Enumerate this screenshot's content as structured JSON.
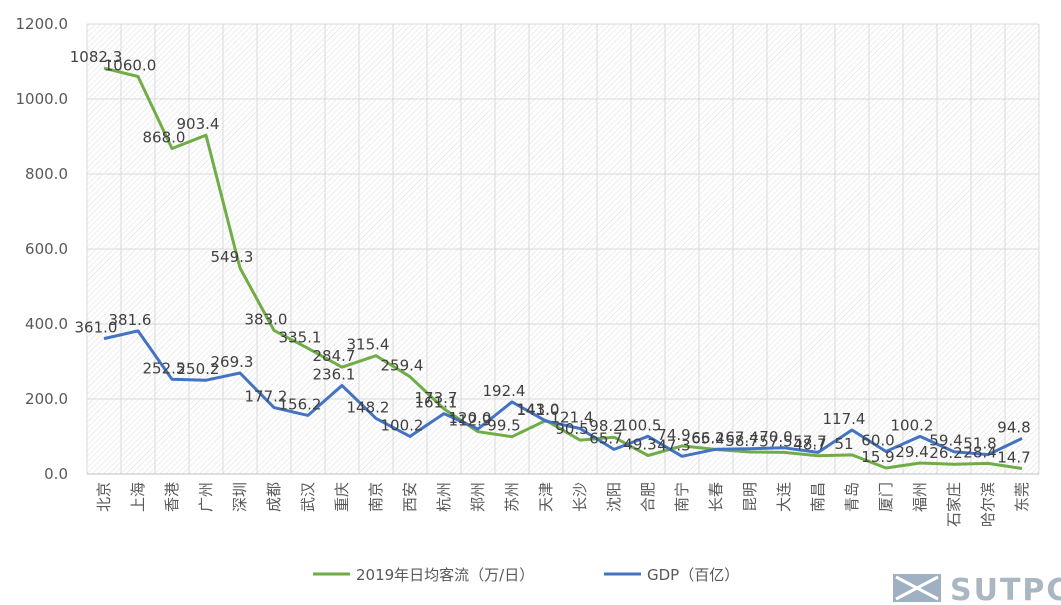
{
  "chart_data": {
    "type": "line",
    "categories": [
      "北京",
      "上海",
      "香港",
      "广州",
      "深圳",
      "成都",
      "武汉",
      "重庆",
      "南京",
      "西安",
      "杭州",
      "郑州",
      "苏州",
      "天津",
      "长沙",
      "沈阳",
      "合肥",
      "南宁",
      "长春",
      "昆明",
      "大连",
      "南昌",
      "青岛",
      "厦门",
      "福州",
      "石家庄",
      "哈尔滨",
      "东莞"
    ],
    "series": [
      {
        "name": "2019年日均客流（万/日）",
        "color": "#70ad47",
        "values": [
          1082.3,
          1060.0,
          868.0,
          903.4,
          549.3,
          383.0,
          335.1,
          284.7,
          315.4,
          259.4,
          173.7,
          112.9,
          99.5,
          143.0,
          90.5,
          98.2,
          49.3,
          74.9,
          65.4,
          58.7,
          57.5,
          48.7,
          51,
          15.9,
          29.4,
          26.2,
          28.4,
          14.7
        ]
      },
      {
        "name": "GDP（百亿）",
        "color": "#4472c4",
        "values": [
          361.0,
          381.6,
          252.5,
          250.2,
          269.3,
          177.2,
          156.2,
          236.1,
          148.2,
          100.2,
          161.1,
          120.0,
          192.4,
          141.0,
          121.4,
          65.7,
          100.5,
          47.3,
          66.2,
          67.4,
          70.0,
          57.7,
          117.4,
          60.0,
          100.2,
          59.4,
          51.8,
          94.8
        ]
      }
    ],
    "ylim": [
      0,
      1200
    ],
    "yticks": [
      "0.0",
      "200.0",
      "400.0",
      "600.0",
      "800.0",
      "1000.0",
      "1200.0"
    ],
    "grid": true,
    "legend": "bottom"
  },
  "watermark": "SUTPC"
}
